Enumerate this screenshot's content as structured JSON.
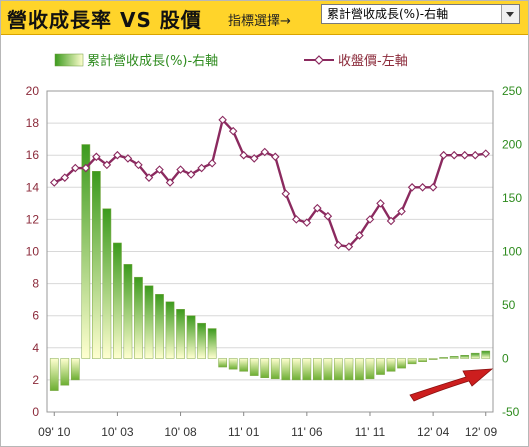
{
  "header": {
    "title": "營收成長率 VS 股價",
    "selector_label": "指標選擇→",
    "selector_value": "累計營收成長(%)-右軸"
  },
  "colors": {
    "header_bg": "#ffd42a",
    "price_line": "#8b2a5f",
    "bar_dark": "#3c9a1d",
    "bar_light": "#ffffd0",
    "left_axis_text": "#8b2a3a",
    "right_axis_text": "#2e8b1e",
    "arrow": "#cc1e1e"
  },
  "chart_data": {
    "type": "bar+line",
    "series": [
      {
        "name": "累計營收成長(%)-右軸",
        "type": "bar",
        "axis": "right",
        "values": [
          -30,
          -25,
          -20,
          200,
          175,
          140,
          108,
          88,
          76,
          68,
          60,
          53,
          46,
          40,
          33,
          28,
          -8,
          -10,
          -12,
          -16,
          -18,
          -19,
          -20,
          -20,
          -20,
          -20,
          -20,
          -20,
          -20,
          -20,
          -19,
          -15,
          -12,
          -9,
          -5,
          -3,
          -1,
          1,
          2,
          3,
          5,
          7
        ]
      },
      {
        "name": "收盤價-左軸",
        "type": "line",
        "axis": "left",
        "values": [
          14.3,
          14.6,
          15.2,
          15.2,
          15.9,
          15.4,
          16.0,
          15.8,
          15.4,
          14.6,
          15.1,
          14.3,
          15.1,
          14.8,
          15.2,
          15.5,
          18.2,
          17.5,
          16.0,
          15.8,
          16.2,
          15.9,
          13.6,
          12.0,
          11.8,
          12.7,
          12.2,
          10.4,
          10.3,
          11.0,
          12.0,
          13.0,
          11.9,
          12.5,
          14.0,
          14.0,
          14.0,
          16.0,
          16.0,
          16.0,
          16.0,
          16.1
        ]
      }
    ],
    "x_tick_labels": [
      "09' 10",
      "10' 03",
      "10' 08",
      "11' 01",
      "11' 06",
      "11' 11",
      "12' 04",
      "12' 09"
    ],
    "left_axis": {
      "ylim": [
        0,
        20
      ],
      "ticks": [
        0,
        2,
        4,
        6,
        8,
        10,
        12,
        14,
        16,
        18,
        20
      ]
    },
    "right_axis": {
      "ylim": [
        -50,
        250
      ],
      "ticks": [
        -50,
        0,
        50,
        100,
        150,
        200,
        250
      ]
    },
    "legend_placement": "top"
  }
}
